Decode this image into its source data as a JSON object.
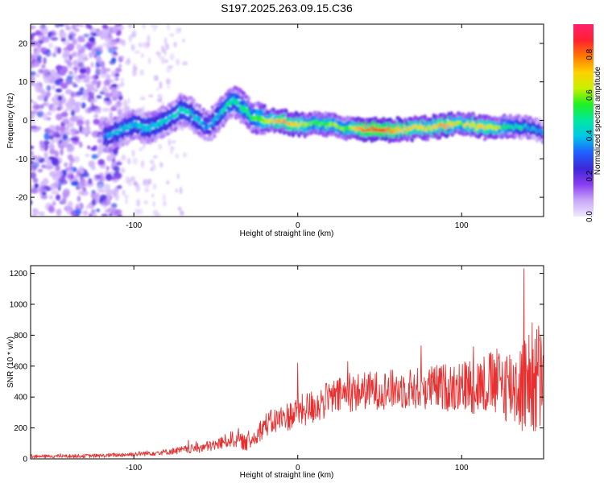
{
  "chart_data": [
    {
      "type": "heatmap",
      "title": "S197.2025.263.09.15.C36",
      "xlabel": "Height of straight line (km)",
      "ylabel": "Frequency (Hz)",
      "xlim": [
        -163,
        150
      ],
      "ylim": [
        -25,
        25
      ],
      "xticks": [
        -100,
        0,
        100
      ],
      "xtick_labels": [
        "-100",
        "0",
        "100"
      ],
      "yticks": [
        -20,
        -10,
        0,
        10,
        20
      ],
      "ytick_labels": [
        "-20",
        "-10",
        "0",
        "10",
        "20"
      ],
      "colorbar": {
        "label": "Normalized spectral amplitude",
        "range": [
          0,
          0.95
        ],
        "ticks": [
          0.0,
          0.2,
          0.4,
          0.6,
          0.8
        ],
        "tick_labels": [
          "0.0",
          "0.2",
          "0.4",
          "0.6",
          "0.8"
        ],
        "colors": [
          "#f0e8ff",
          "#c8a8f8",
          "#8a3cf0",
          "#3c28d8",
          "#2060ff",
          "#00c8e8",
          "#00e8a0",
          "#20f020",
          "#c8f000",
          "#ffd000",
          "#ff7800",
          "#ff2030",
          "#ff2070"
        ]
      },
      "ridge": {
        "x": [
          -115,
          -110,
          -100,
          -90,
          -80,
          -70,
          -65,
          -55,
          -48,
          -42,
          -38,
          -33,
          -28,
          -20,
          -10,
          0,
          10,
          20,
          30,
          40,
          50,
          60,
          70,
          80,
          90,
          100,
          110,
          120,
          130,
          140,
          150
        ],
        "y": [
          -4,
          -3,
          -1,
          -2,
          0,
          3,
          2,
          -2,
          1,
          4.5,
          5,
          3,
          1,
          0,
          0,
          -1,
          -1,
          -1,
          -2,
          -2,
          -2.5,
          -2.5,
          -2,
          -2,
          -1,
          -1,
          -1.5,
          -2,
          -1.5,
          -2,
          -3
        ],
        "amplitude": [
          0.35,
          0.4,
          0.4,
          0.4,
          0.4,
          0.45,
          0.4,
          0.35,
          0.4,
          0.5,
          0.45,
          0.5,
          0.5,
          0.6,
          0.75,
          0.7,
          0.55,
          0.6,
          0.55,
          0.8,
          0.85,
          0.75,
          0.7,
          0.65,
          0.75,
          0.6,
          0.7,
          0.65,
          0.5,
          0.4,
          0.35
        ]
      }
    },
    {
      "type": "line",
      "xlabel": "Height of straight line (km)",
      "ylabel": "SNR (10 * v/v)",
      "xlim": [
        -163,
        150
      ],
      "ylim": [
        0,
        1250
      ],
      "xticks": [
        -100,
        0,
        100
      ],
      "xtick_labels": [
        "-100",
        "0",
        "100"
      ],
      "yticks": [
        0,
        200,
        400,
        600,
        800,
        1000,
        1200
      ],
      "ytick_labels": [
        "0",
        "200",
        "400",
        "600",
        "800",
        "1000",
        "1200"
      ],
      "series": [
        {
          "name": "SNR",
          "color": "#e83030",
          "envelope": {
            "x": [
              -163,
              -120,
              -100,
              -80,
              -60,
              -50,
              -40,
              -30,
              -25,
              -20,
              -10,
              0,
              10,
              20,
              30,
              40,
              60,
              80,
              100,
              110,
              120,
              130,
              140,
              145,
              150
            ],
            "mean": [
              15,
              20,
              30,
              45,
              70,
              90,
              130,
              100,
              160,
              220,
              260,
              300,
              340,
              390,
              420,
              440,
              450,
              460,
              470,
              480,
              490,
              480,
              470,
              500,
              480
            ],
            "noise": [
              8,
              10,
              12,
              15,
              25,
              30,
              40,
              40,
              50,
              60,
              70,
              80,
              90,
              90,
              95,
              95,
              100,
              110,
              130,
              150,
              170,
              200,
              260,
              300,
              260
            ]
          },
          "peaks": [
            {
              "x": 0,
              "y": 620
            },
            {
              "x": 138,
              "y": 1230
            },
            {
              "x": 143,
              "y": 880
            },
            {
              "x": 147,
              "y": 860
            }
          ]
        }
      ]
    }
  ]
}
